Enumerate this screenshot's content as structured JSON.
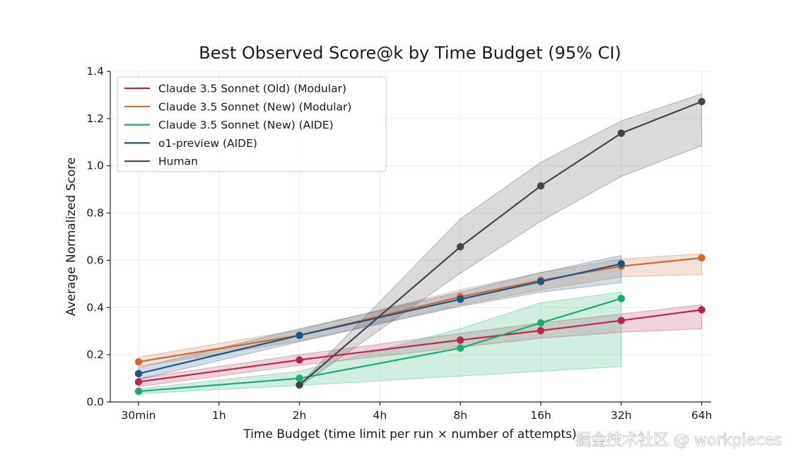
{
  "chart_data": {
    "type": "line",
    "title": "Best Observed Score@k by Time Budget (95% CI)",
    "xlabel": "Time Budget (time limit per run × number of attempts)",
    "ylabel": "Average Normalized Score",
    "categories": [
      "30min",
      "1h",
      "2h",
      "4h",
      "8h",
      "16h",
      "32h",
      "64h"
    ],
    "ylim": [
      0.0,
      1.4
    ],
    "yticks": [
      "0.0",
      "0.2",
      "0.4",
      "0.6",
      "0.8",
      "1.0",
      "1.2",
      "1.4"
    ],
    "grid": true,
    "legend_position": "top-left",
    "series": [
      {
        "name": "Claude 3.5 Sonnet (Old) (Modular)",
        "color": "#b5294f",
        "x": [
          "30min",
          "2h",
          "8h",
          "16h",
          "32h",
          "64h"
        ],
        "values": [
          0.085,
          0.178,
          0.262,
          0.302,
          0.345,
          0.39
        ],
        "ci_lower": [
          0.065,
          0.155,
          0.232,
          0.27,
          0.295,
          0.31
        ],
        "ci_upper": [
          0.1,
          0.2,
          0.29,
          0.335,
          0.372,
          0.412
        ]
      },
      {
        "name": "Claude 3.5 Sonnet (New) (Modular)",
        "color": "#c96b38",
        "x": [
          "30min",
          "2h",
          "8h",
          "16h",
          "32h",
          "64h"
        ],
        "values": [
          0.17,
          0.282,
          0.445,
          0.515,
          0.575,
          0.61
        ],
        "ci_lower": [
          0.15,
          0.258,
          0.41,
          0.475,
          0.53,
          0.54
        ],
        "ci_upper": [
          0.19,
          0.305,
          0.475,
          0.548,
          0.605,
          0.628
        ]
      },
      {
        "name": "Claude 3.5 Sonnet (New) (AIDE)",
        "color": "#1aab6e",
        "x": [
          "30min",
          "2h",
          "8h",
          "16h",
          "32h"
        ],
        "values": [
          0.045,
          0.1,
          0.228,
          0.335,
          0.438
        ],
        "ci_lower": [
          0.035,
          0.07,
          0.11,
          0.13,
          0.15
        ],
        "ci_upper": [
          0.055,
          0.13,
          0.31,
          0.42,
          0.465
        ]
      },
      {
        "name": "o1-preview (AIDE)",
        "color": "#1b5683",
        "x": [
          "30min",
          "2h",
          "8h",
          "16h",
          "32h"
        ],
        "values": [
          0.12,
          0.282,
          0.435,
          0.51,
          0.585
        ],
        "ci_lower": [
          0.095,
          0.255,
          0.405,
          0.465,
          0.505
        ],
        "ci_upper": [
          0.145,
          0.31,
          0.465,
          0.548,
          0.62
        ]
      },
      {
        "name": "Human",
        "color": "#454545",
        "x": [
          "2h",
          "8h",
          "16h",
          "32h",
          "64h"
        ],
        "values": [
          0.072,
          0.657,
          0.915,
          1.138,
          1.272
        ],
        "ci_lower": [
          0.065,
          0.545,
          0.765,
          0.955,
          1.085
        ],
        "ci_upper": [
          0.075,
          0.775,
          1.015,
          1.19,
          1.305
        ]
      }
    ]
  },
  "watermark": "掘金技术社区 @ workpieces"
}
